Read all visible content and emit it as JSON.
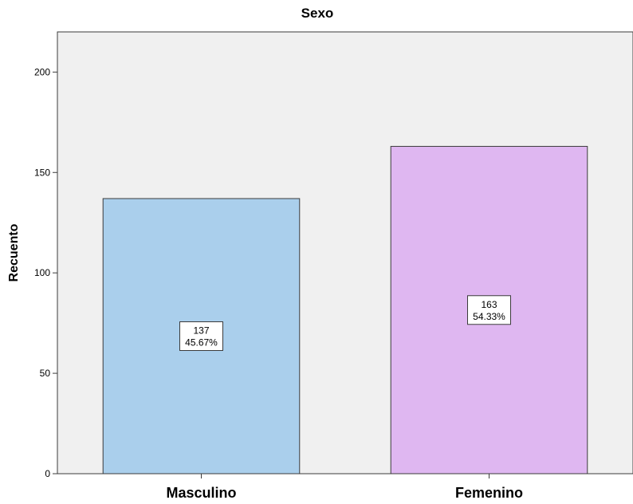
{
  "chart_data": {
    "type": "bar",
    "title": "Sexo",
    "xlabel": "",
    "ylabel": "Recuento",
    "categories": [
      "Masculino",
      "Femenino"
    ],
    "values": [
      137,
      163
    ],
    "percent_labels": [
      "45.67%",
      "54.33%"
    ],
    "count_labels": [
      "137",
      "163"
    ],
    "ylim": [
      0,
      220
    ],
    "yticks": [
      0,
      50,
      100,
      150,
      200
    ],
    "ytick_labels": [
      "0",
      "50",
      "100",
      "150",
      "200"
    ],
    "grid": false,
    "colors": {
      "plot_background": "#f0f0f0",
      "bars": [
        "#aacfec",
        "#dfb7f1"
      ],
      "bar_outline": "#3b3b3b"
    }
  }
}
